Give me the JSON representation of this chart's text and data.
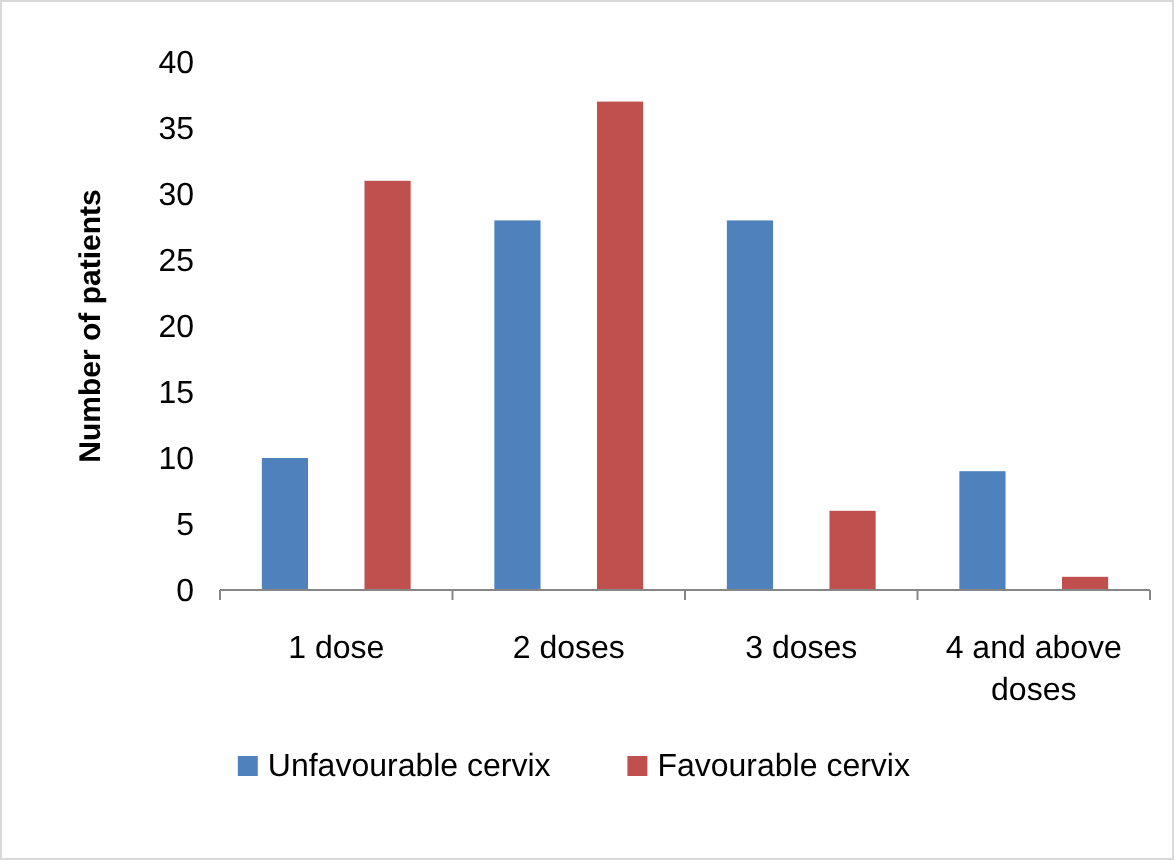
{
  "chart_data": {
    "type": "bar",
    "ylabel": "Number of patients",
    "categories": [
      "1 dose",
      "2 doses",
      "3 doses",
      "4 and above doses"
    ],
    "series": [
      {
        "name": "Unfavourable cervix",
        "color": "#4f81bd",
        "values": [
          10,
          28,
          28,
          9
        ]
      },
      {
        "name": "Favourable cervix",
        "color": "#c0504d",
        "values": [
          31,
          37,
          6,
          1
        ]
      }
    ],
    "ylim": [
      0,
      40
    ],
    "yticks": [
      0,
      5,
      10,
      15,
      20,
      25,
      30,
      35,
      40
    ],
    "grid": false,
    "legend": "bottom"
  }
}
